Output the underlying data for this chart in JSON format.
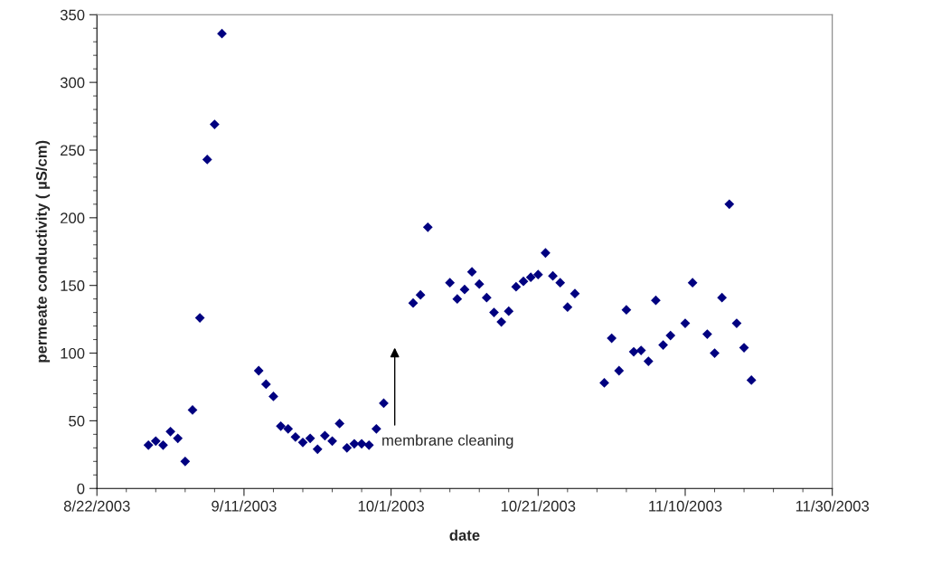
{
  "chart_data": {
    "type": "scatter",
    "xlabel": "date",
    "ylabel": "permeate conductivity ( µS/cm)",
    "marker": "diamond",
    "grid": false,
    "legend": false,
    "xlim": [
      "2003-08-22",
      "2003-11-30"
    ],
    "xticks": [
      {
        "value": "2003-08-22",
        "label": "8/22/2003"
      },
      {
        "value": "2003-09-11",
        "label": "9/11/2003"
      },
      {
        "value": "2003-10-01",
        "label": "10/1/2003"
      },
      {
        "value": "2003-10-21",
        "label": "10/21/2003"
      },
      {
        "value": "2003-11-10",
        "label": "11/10/2003"
      },
      {
        "value": "2003-11-30",
        "label": "11/30/2003"
      }
    ],
    "ylim": [
      0,
      350
    ],
    "yticks": [
      0,
      50,
      100,
      150,
      200,
      250,
      300,
      350
    ],
    "annotations": [
      "membrane cleaning"
    ],
    "series": [
      {
        "color": "#000080",
        "x": [
          "2003-08-29",
          "2003-08-30",
          "2003-08-31",
          "2003-09-01",
          "2003-09-02",
          "2003-09-03",
          "2003-09-04",
          "2003-09-05",
          "2003-09-06",
          "2003-09-07",
          "2003-09-08",
          "2003-09-13",
          "2003-09-14",
          "2003-09-15",
          "2003-09-16",
          "2003-09-17",
          "2003-09-18",
          "2003-09-19",
          "2003-09-20",
          "2003-09-21",
          "2003-09-22",
          "2003-09-23",
          "2003-09-24",
          "2003-09-25",
          "2003-09-26",
          "2003-09-27",
          "2003-09-28",
          "2003-09-29",
          "2003-09-30",
          "2003-10-04",
          "2003-10-05",
          "2003-10-06",
          "2003-10-09",
          "2003-10-10",
          "2003-10-11",
          "2003-10-12",
          "2003-10-13",
          "2003-10-14",
          "2003-10-15",
          "2003-10-16",
          "2003-10-17",
          "2003-10-18",
          "2003-10-19",
          "2003-10-20",
          "2003-10-21",
          "2003-10-22",
          "2003-10-23",
          "2003-10-24",
          "2003-10-25",
          "2003-10-26",
          "2003-10-30",
          "2003-10-31",
          "2003-11-01",
          "2003-11-02",
          "2003-11-03",
          "2003-11-04",
          "2003-11-05",
          "2003-11-06",
          "2003-11-07",
          "2003-11-08",
          "2003-11-10",
          "2003-11-11",
          "2003-11-13",
          "2003-11-14",
          "2003-11-15",
          "2003-11-16",
          "2003-11-17",
          "2003-11-18",
          "2003-11-19"
        ],
        "values": [
          32,
          35,
          32,
          42,
          37,
          20,
          58,
          126,
          243,
          269,
          336,
          87,
          77,
          68,
          46,
          44,
          38,
          34,
          37,
          29,
          39,
          35,
          48,
          30,
          33,
          33,
          32,
          44,
          63,
          137,
          143,
          193,
          152,
          140,
          147,
          160,
          151,
          141,
          130,
          123,
          131,
          149,
          153,
          156,
          158,
          174,
          157,
          152,
          134,
          144,
          78,
          111,
          87,
          132,
          101,
          102,
          94,
          139,
          106,
          113,
          122,
          152,
          114,
          100,
          141,
          210,
          122,
          104,
          80
        ]
      }
    ]
  }
}
